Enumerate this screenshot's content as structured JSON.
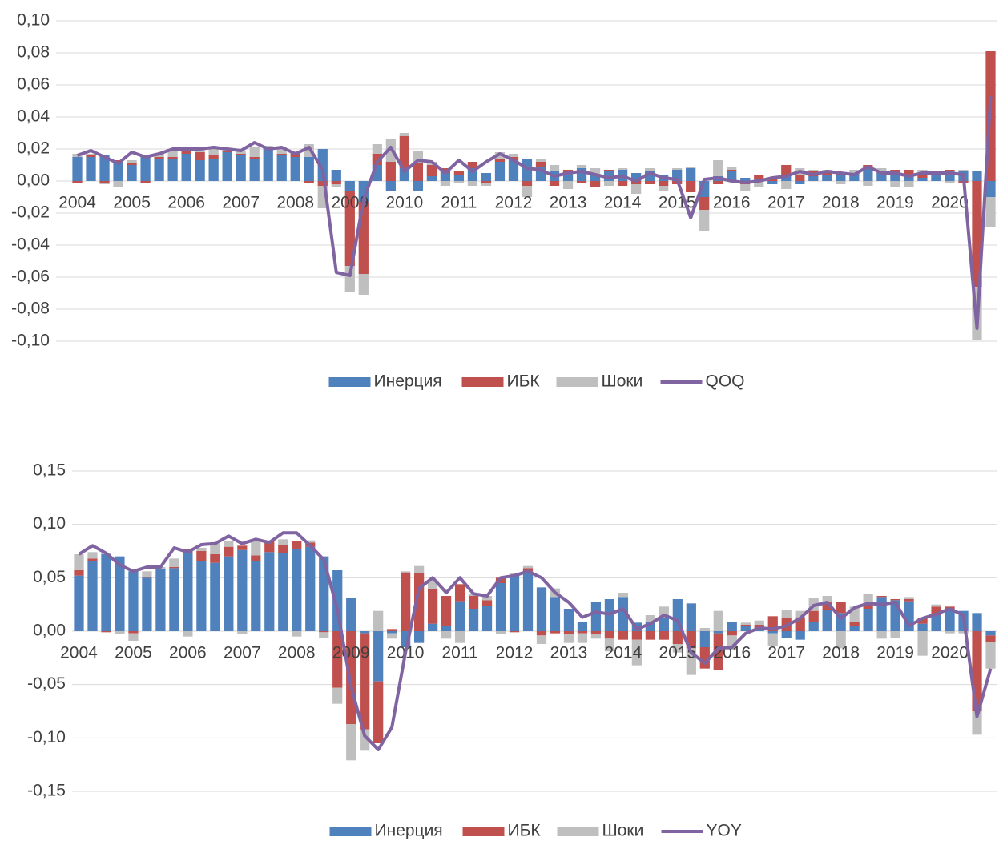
{
  "chart_data": [
    {
      "type": "bar",
      "stacked": true,
      "grid": true,
      "legend": "bottom",
      "categories": [
        "2004",
        null,
        null,
        null,
        "2005",
        null,
        null,
        null,
        "2006",
        null,
        null,
        null,
        "2007",
        null,
        null,
        null,
        "2008",
        null,
        null,
        null,
        "2009",
        null,
        null,
        null,
        "2010",
        null,
        null,
        null,
        "2011",
        null,
        null,
        null,
        "2012",
        null,
        null,
        null,
        "2013",
        null,
        null,
        null,
        "2014",
        null,
        null,
        null,
        "2015",
        null,
        null,
        null,
        "2016",
        null,
        null,
        null,
        "2017",
        null,
        null,
        null,
        "2018",
        null,
        null,
        null,
        "2019",
        null,
        null,
        null,
        "2020",
        null,
        null,
        null
      ],
      "ylim": [
        -0.1,
        0.1
      ],
      "yticks": [
        {
          "value": -0.1,
          "label": "-0,10"
        },
        {
          "value": -0.08,
          "label": "-0,08"
        },
        {
          "value": -0.06,
          "label": "-0,06"
        },
        {
          "value": -0.04,
          "label": "-0,04"
        },
        {
          "value": -0.02,
          "label": "-0,02"
        },
        {
          "value": 0,
          "label": "0,00"
        },
        {
          "value": 0.02,
          "label": "0,02"
        },
        {
          "value": 0.04,
          "label": "0,04"
        },
        {
          "value": 0.06,
          "label": "0,06"
        },
        {
          "value": 0.08,
          "label": "0,08"
        },
        {
          "value": 0.1,
          "label": "0,10"
        }
      ],
      "series": [
        {
          "name": "Инерция",
          "color": "#4f81bd",
          "values": [
            0.015,
            0.015,
            0.016,
            0.012,
            0.01,
            0.015,
            0.014,
            0.014,
            0.017,
            0.013,
            0.014,
            0.018,
            0.016,
            0.014,
            0.02,
            0.016,
            0.015,
            0.015,
            0.02,
            0.007,
            -0.006,
            -0.013,
            0.01,
            -0.006,
            0.008,
            -0.006,
            0.003,
            0.005,
            0.004,
            0.008,
            0.005,
            0.012,
            0.013,
            0.014,
            0.009,
            0.006,
            0.005,
            0.008,
            0.004,
            0.006,
            0.007,
            0.005,
            0.006,
            0.004,
            0.007,
            0.008,
            -0.01,
            0.003,
            0.006,
            0.002,
            0.001,
            -0.002,
            0.004,
            -0.002,
            0.003,
            0.004,
            0.004,
            0.005,
            0.008,
            0.005,
            0.005,
            0.004,
            0.002,
            0.004,
            0.006,
            0.006,
            0.006,
            -0.01
          ]
        },
        {
          "name": "ИБК",
          "color": "#c0504d",
          "values": [
            -0.001,
            0.001,
            -0.001,
            0.001,
            0.001,
            -0.001,
            0.001,
            0.001,
            0.002,
            0.005,
            0.002,
            0.001,
            0.001,
            0.001,
            0.001,
            0.001,
            0.003,
            -0.001,
            -0.003,
            -0.002,
            -0.047,
            -0.045,
            0.007,
            0.012,
            0.02,
            0.011,
            0.007,
            0.003,
            0.002,
            0.004,
            -0.001,
            0.002,
            0.002,
            -0.003,
            0.003,
            -0.003,
            0.002,
            -0.001,
            -0.004,
            0.001,
            -0.003,
            -0.002,
            -0.002,
            -0.003,
            -0.002,
            -0.007,
            -0.008,
            -0.002,
            0.001,
            -0.002,
            0.003,
            0.001,
            0.006,
            0.004,
            0.003,
            0.002,
            0.001,
            0.0,
            0.002,
            0.001,
            0.002,
            0.003,
            0.003,
            0.001,
            0.001,
            -0.001,
            -0.066,
            0.081
          ]
        },
        {
          "name": "Шоки",
          "color": "#bfbfbf",
          "values": [
            0.002,
            0.001,
            -0.001,
            -0.004,
            0.002,
            0.001,
            0.002,
            0.005,
            0.001,
            0.002,
            0.005,
            0.001,
            0.002,
            0.006,
            0.001,
            0.004,
            0.001,
            0.008,
            -0.014,
            -0.002,
            -0.016,
            -0.013,
            0.006,
            0.014,
            0.002,
            0.008,
            0.002,
            -0.003,
            -0.001,
            -0.003,
            -0.002,
            0.004,
            0.002,
            -0.007,
            0.002,
            0.004,
            -0.005,
            0.002,
            0.004,
            -0.003,
            0.001,
            -0.006,
            0.002,
            -0.003,
            0.001,
            0.001,
            -0.013,
            0.01,
            0.002,
            -0.004,
            -0.004,
            0.001,
            -0.005,
            0.004,
            0.001,
            0.001,
            -0.002,
            0.002,
            -0.003,
            0.002,
            -0.004,
            -0.004,
            0.002,
            0.001,
            -0.001,
            0.001,
            -0.033,
            -0.019
          ]
        },
        {
          "name": "QOQ",
          "color": "#8064a2",
          "type": "line",
          "values": [
            0.016,
            0.019,
            0.015,
            0.011,
            0.018,
            0.015,
            0.017,
            0.02,
            0.02,
            0.02,
            0.021,
            0.02,
            0.019,
            0.024,
            0.02,
            0.021,
            0.017,
            0.021,
            0.007,
            -0.057,
            -0.059,
            -0.012,
            0.012,
            0.021,
            0.006,
            0.013,
            0.012,
            0.005,
            0.013,
            0.006,
            0.012,
            0.017,
            0.013,
            0.008,
            0.007,
            0.003,
            0.005,
            0.006,
            0.004,
            0.002,
            0.003,
            0.0,
            0.005,
            0.002,
            0.001,
            -0.023,
            0.001,
            0.002,
            0.0,
            -0.001,
            0.0,
            0.002,
            0.003,
            0.006,
            0.004,
            0.006,
            0.005,
            0.004,
            0.009,
            0.005,
            0.005,
            0.003,
            0.005,
            0.005,
            0.005,
            0.004,
            -0.092,
            0.053
          ]
        }
      ]
    },
    {
      "type": "bar",
      "stacked": true,
      "grid": true,
      "legend": "bottom",
      "categories": [
        "2004",
        null,
        null,
        null,
        "2005",
        null,
        null,
        null,
        "2006",
        null,
        null,
        null,
        "2007",
        null,
        null,
        null,
        "2008",
        null,
        null,
        null,
        "2009",
        null,
        null,
        null,
        "2010",
        null,
        null,
        null,
        "2011",
        null,
        null,
        null,
        "2012",
        null,
        null,
        null,
        "2013",
        null,
        null,
        null,
        "2014",
        null,
        null,
        null,
        "2015",
        null,
        null,
        null,
        "2016",
        null,
        null,
        null,
        "2017",
        null,
        null,
        null,
        "2018",
        null,
        null,
        null,
        "2019",
        null,
        null,
        null,
        "2020",
        null,
        null,
        null
      ],
      "ylim": [
        -0.15,
        0.15
      ],
      "yticks": [
        {
          "value": -0.15,
          "label": "-0,15"
        },
        {
          "value": -0.1,
          "label": "-0,10"
        },
        {
          "value": -0.05,
          "label": "-0,05"
        },
        {
          "value": 0,
          "label": "0,00"
        },
        {
          "value": 0.05,
          "label": "0,05"
        },
        {
          "value": 0.1,
          "label": "0,10"
        },
        {
          "value": 0.15,
          "label": "0,15"
        }
      ],
      "series": [
        {
          "name": "Инерция",
          "color": "#4f81bd",
          "values": [
            0.052,
            0.066,
            0.072,
            0.07,
            0.056,
            0.05,
            0.058,
            0.059,
            0.073,
            0.066,
            0.064,
            0.07,
            0.076,
            0.066,
            0.074,
            0.073,
            0.077,
            0.079,
            0.07,
            0.057,
            0.031,
            -0.002,
            -0.047,
            -0.002,
            -0.015,
            -0.011,
            0.007,
            0.005,
            0.028,
            0.021,
            0.024,
            0.045,
            0.052,
            0.056,
            0.041,
            0.032,
            0.021,
            0.009,
            0.027,
            0.03,
            0.032,
            0.008,
            0.009,
            0.012,
            0.03,
            0.026,
            -0.015,
            -0.002,
            0.009,
            0.005,
            0.003,
            -0.002,
            -0.006,
            -0.008,
            0.009,
            0.02,
            0.017,
            0.005,
            0.021,
            0.032,
            0.029,
            0.028,
            0.007,
            0.015,
            0.021,
            0.019,
            0.017,
            -0.004
          ]
        },
        {
          "name": "ИБК",
          "color": "#c0504d",
          "values": [
            0.005,
            0.002,
            -0.001,
            0.0,
            -0.002,
            0.001,
            0.0,
            0.001,
            0.004,
            0.009,
            0.008,
            0.009,
            0.004,
            0.005,
            0.01,
            0.008,
            0.007,
            0.004,
            -0.001,
            -0.053,
            -0.087,
            -0.09,
            -0.058,
            0.002,
            0.055,
            0.054,
            0.032,
            0.028,
            0.016,
            0.012,
            0.005,
            0.005,
            -0.001,
            0.003,
            -0.004,
            -0.002,
            -0.003,
            -0.002,
            -0.003,
            -0.007,
            -0.008,
            -0.008,
            -0.008,
            -0.008,
            -0.012,
            -0.016,
            -0.02,
            -0.034,
            -0.004,
            0.001,
            0.003,
            0.014,
            0.012,
            0.013,
            0.01,
            0.007,
            0.01,
            0.004,
            0.005,
            0.001,
            0.001,
            0.002,
            0.005,
            0.008,
            0.002,
            0.0,
            -0.075,
            -0.006
          ]
        },
        {
          "name": "Шоки",
          "color": "#bfbfbf",
          "values": [
            0.015,
            0.006,
            0.001,
            -0.003,
            -0.007,
            0.005,
            0.002,
            0.008,
            -0.005,
            0.003,
            0.01,
            0.005,
            -0.003,
            0.013,
            0.001,
            0.005,
            -0.005,
            0.002,
            -0.005,
            -0.015,
            -0.034,
            -0.02,
            0.019,
            -0.005,
            0.001,
            0.007,
            0.009,
            -0.007,
            -0.011,
            0.002,
            0.004,
            -0.003,
            0.002,
            0.002,
            -0.008,
            0.008,
            -0.008,
            -0.009,
            -0.004,
            -0.012,
            0.004,
            -0.024,
            0.006,
            0.011,
            -0.008,
            -0.025,
            0.003,
            0.019,
            -0.014,
            0.002,
            0.004,
            -0.012,
            0.008,
            0.006,
            0.012,
            0.006,
            -0.016,
            0.014,
            0.009,
            -0.007,
            -0.006,
            0.002,
            -0.023,
            0.002,
            -0.002,
            -0.002,
            -0.022,
            -0.025
          ]
        },
        {
          "name": "YOY",
          "color": "#8064a2",
          "type": "line",
          "values": [
            0.072,
            0.08,
            0.073,
            0.062,
            0.056,
            0.06,
            0.06,
            0.078,
            0.074,
            0.081,
            0.082,
            0.089,
            0.082,
            0.086,
            0.083,
            0.092,
            0.092,
            0.08,
            0.067,
            0.02,
            -0.052,
            -0.098,
            -0.111,
            -0.09,
            -0.02,
            0.04,
            0.05,
            0.036,
            0.05,
            0.035,
            0.033,
            0.05,
            0.052,
            0.056,
            0.05,
            0.036,
            0.027,
            0.013,
            0.018,
            0.016,
            0.021,
            0.002,
            0.007,
            0.015,
            0.01,
            -0.02,
            -0.03,
            -0.016,
            -0.015,
            -0.002,
            0.003,
            0.002,
            0.005,
            0.012,
            0.024,
            0.027,
            0.012,
            0.022,
            0.026,
            0.025,
            0.027,
            0.005,
            0.012,
            0.016,
            0.021,
            0.015,
            -0.08,
            -0.035
          ]
        }
      ]
    }
  ]
}
